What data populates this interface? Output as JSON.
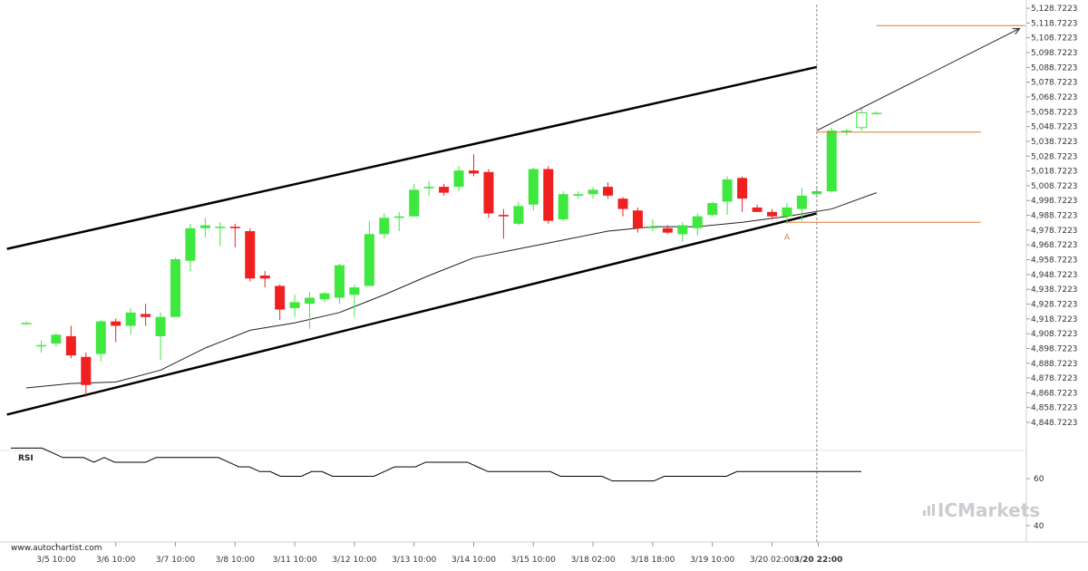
{
  "source_label": "www.autochartist.com",
  "watermark": "ICMarkets",
  "colors": {
    "bull": "#3ee83e",
    "bear": "#f02020",
    "ma": "#222222",
    "channel": "#000000",
    "level": "#e07a30",
    "projection": "#222222",
    "rsi": "#000000",
    "grid_axis": "#d0d0d0"
  },
  "chart_data": [
    {
      "type": "candlestick",
      "title": "",
      "ylim": [
        4842,
        5130
      ],
      "y_ticks": [
        "5,128.7223",
        "5,118.7223",
        "5,108.7223",
        "5,098.7223",
        "5,088.7223",
        "5,078.7223",
        "5,068.7223",
        "5,058.7223",
        "5,048.7223",
        "5,038.7223",
        "5,028.7223",
        "5,018.7223",
        "5,008.7223",
        "4,998.7223",
        "4,988.7223",
        "4,978.7223",
        "4,968.7223",
        "4,958.7223",
        "4,948.7223",
        "4,938.7223",
        "4,928.7223",
        "4,918.7223",
        "4,908.7223",
        "4,898.7223",
        "4,888.7223",
        "4,878.7223",
        "4,868.7223",
        "4,858.7223",
        "4,848.7223"
      ],
      "x_ticks": [
        {
          "index": 2,
          "label": "3/5 10:00"
        },
        {
          "index": 6,
          "label": "3/6 10:00"
        },
        {
          "index": 10,
          "label": "3/7 10:00"
        },
        {
          "index": 14,
          "label": "3/8 10:00"
        },
        {
          "index": 18,
          "label": "3/11 10:00"
        },
        {
          "index": 22,
          "label": "3/12 10:00"
        },
        {
          "index": 26,
          "label": "3/13 10:00"
        },
        {
          "index": 30,
          "label": "3/14 10:00"
        },
        {
          "index": 34,
          "label": "3/15 10:00"
        },
        {
          "index": 38,
          "label": "3/18 02:00"
        },
        {
          "index": 42,
          "label": "3/18 18:00"
        },
        {
          "index": 46,
          "label": "3/19 10:00"
        },
        {
          "index": 50,
          "label": "3/20 02:00"
        },
        {
          "index": 53.1,
          "label": "3/20 22:00",
          "bold": true
        }
      ],
      "candles": [
        {
          "o": 4916,
          "h": 4917,
          "l": 4915,
          "c": 4916
        },
        {
          "o": 4901,
          "h": 4904,
          "l": 4896,
          "c": 4901
        },
        {
          "o": 4902,
          "h": 4909,
          "l": 4900,
          "c": 4908
        },
        {
          "o": 4907,
          "h": 4914,
          "l": 4892,
          "c": 4894
        },
        {
          "o": 4893,
          "h": 4896,
          "l": 4866,
          "c": 4874
        },
        {
          "o": 4895,
          "h": 4918,
          "l": 4890,
          "c": 4917
        },
        {
          "o": 4917,
          "h": 4919,
          "l": 4903,
          "c": 4914
        },
        {
          "o": 4914,
          "h": 4926,
          "l": 4908,
          "c": 4923
        },
        {
          "o": 4922,
          "h": 4929,
          "l": 4914,
          "c": 4920
        },
        {
          "o": 4907,
          "h": 4923,
          "l": 4891,
          "c": 4920
        },
        {
          "o": 4920,
          "h": 4960,
          "l": 4920,
          "c": 4959
        },
        {
          "o": 4958,
          "h": 4983,
          "l": 4951,
          "c": 4980
        },
        {
          "o": 4980,
          "h": 4987,
          "l": 4974,
          "c": 4982
        },
        {
          "o": 4981,
          "h": 4984,
          "l": 4968,
          "c": 4981
        },
        {
          "o": 4981,
          "h": 4983,
          "l": 4967,
          "c": 4980
        },
        {
          "o": 4978,
          "h": 4980,
          "l": 4944,
          "c": 4946
        },
        {
          "o": 4948,
          "h": 4951,
          "l": 4940,
          "c": 4946
        },
        {
          "o": 4941,
          "h": 4942,
          "l": 4918,
          "c": 4925
        },
        {
          "o": 4926,
          "h": 4935,
          "l": 4920,
          "c": 4930
        },
        {
          "o": 4929,
          "h": 4937,
          "l": 4912,
          "c": 4933
        },
        {
          "o": 4932,
          "h": 4937,
          "l": 4930,
          "c": 4936
        },
        {
          "o": 4933,
          "h": 4956,
          "l": 4929,
          "c": 4955
        },
        {
          "o": 4935,
          "h": 4942,
          "l": 4920,
          "c": 4940
        },
        {
          "o": 4941,
          "h": 4985,
          "l": 4941,
          "c": 4976
        },
        {
          "o": 4976,
          "h": 4990,
          "l": 4973,
          "c": 4987
        },
        {
          "o": 4987,
          "h": 4991,
          "l": 4978,
          "c": 4988
        },
        {
          "o": 4988,
          "h": 5010,
          "l": 4988,
          "c": 5006
        },
        {
          "o": 5007,
          "h": 5012,
          "l": 5002,
          "c": 5008
        },
        {
          "o": 5008,
          "h": 5010,
          "l": 5002,
          "c": 5004
        },
        {
          "o": 5008,
          "h": 5022,
          "l": 5005,
          "c": 5019
        },
        {
          "o": 5019,
          "h": 5030,
          "l": 5015,
          "c": 5017
        },
        {
          "o": 5018,
          "h": 5020,
          "l": 4987,
          "c": 4990
        },
        {
          "o": 4989,
          "h": 4993,
          "l": 4973,
          "c": 4988
        },
        {
          "o": 4983,
          "h": 4998,
          "l": 4982,
          "c": 4995
        },
        {
          "o": 4996,
          "h": 5021,
          "l": 4992,
          "c": 5020
        },
        {
          "o": 5020,
          "h": 5022,
          "l": 4983,
          "c": 4985
        },
        {
          "o": 4986,
          "h": 5005,
          "l": 4985,
          "c": 5003
        },
        {
          "o": 5002,
          "h": 5005,
          "l": 5000,
          "c": 5003
        },
        {
          "o": 5003,
          "h": 5008,
          "l": 5000,
          "c": 5006
        },
        {
          "o": 5008,
          "h": 5011,
          "l": 5000,
          "c": 5002
        },
        {
          "o": 5000,
          "h": 5001,
          "l": 4988,
          "c": 4993
        },
        {
          "o": 4992,
          "h": 4994,
          "l": 4977,
          "c": 4980
        },
        {
          "o": 4980,
          "h": 4986,
          "l": 4978,
          "c": 4981
        },
        {
          "o": 4980,
          "h": 4982,
          "l": 4976,
          "c": 4977
        },
        {
          "o": 4976,
          "h": 4984,
          "l": 4971,
          "c": 4982
        },
        {
          "o": 4980,
          "h": 4990,
          "l": 4975,
          "c": 4988
        },
        {
          "o": 4989,
          "h": 4998,
          "l": 4988,
          "c": 4997
        },
        {
          "o": 4998,
          "h": 5015,
          "l": 4989,
          "c": 5013
        },
        {
          "o": 5014,
          "h": 5015,
          "l": 4991,
          "c": 5000
        },
        {
          "o": 4994,
          "h": 4996,
          "l": 4991,
          "c": 4991
        },
        {
          "o": 4991,
          "h": 4993,
          "l": 4986,
          "c": 4988
        },
        {
          "o": 4988,
          "h": 4997,
          "l": 4983,
          "c": 4994
        },
        {
          "o": 4993,
          "h": 5007,
          "l": 4985,
          "c": 5002
        },
        {
          "o": 5003,
          "h": 5007,
          "l": 5002,
          "c": 5005
        },
        {
          "o": 5005,
          "h": 5048,
          "l": 5004,
          "c": 5046
        },
        {
          "o": 5046,
          "h": 5047,
          "l": 5043,
          "c": 5046
        },
        {
          "o": 5048,
          "h": 5061,
          "l": 5046,
          "c": 5058
        },
        {
          "o": 5058,
          "h": 5059,
          "l": 5058,
          "c": 5058
        }
      ],
      "hollow_indices": [
        56
      ],
      "moving_average": [
        [
          0,
          4872
        ],
        [
          3,
          4875
        ],
        [
          6,
          4876
        ],
        [
          9,
          4884
        ],
        [
          12,
          4899
        ],
        [
          15,
          4911
        ],
        [
          18,
          4916
        ],
        [
          21,
          4923
        ],
        [
          24,
          4935
        ],
        [
          27,
          4948
        ],
        [
          30,
          4960
        ],
        [
          33,
          4966
        ],
        [
          36,
          4972
        ],
        [
          39,
          4978
        ],
        [
          42,
          4981
        ],
        [
          45,
          4981
        ],
        [
          48,
          4984
        ],
        [
          51,
          4988
        ],
        [
          54,
          4993
        ],
        [
          57,
          5004
        ]
      ],
      "channel_upper": [
        [
          -1.3,
          4966
        ],
        [
          53,
          5089
        ]
      ],
      "channel_lower": [
        [
          -1.3,
          4854
        ],
        [
          53,
          4990
        ]
      ],
      "levels": [
        {
          "value": 5045,
          "from": 53,
          "to": 64
        },
        {
          "value": 4984,
          "from": 51,
          "to": 64
        },
        {
          "value": 5117,
          "from": 57,
          "to": 67
        }
      ],
      "projection": [
        [
          53,
          5046
        ],
        [
          66.6,
          5115
        ]
      ],
      "current_bar_index": 53,
      "point_label": {
        "text": "A",
        "index": 51,
        "value": 4979
      }
    },
    {
      "type": "line",
      "title": "RSI",
      "ylim": [
        33,
        72
      ],
      "y_ticks": [
        "60",
        "40"
      ],
      "series": [
        {
          "values": [
            73,
            73,
            73,
            73,
            71,
            69,
            69,
            69,
            67,
            69,
            67,
            67,
            67,
            67,
            69,
            69,
            69,
            69,
            69,
            69,
            69,
            67,
            65,
            65,
            63,
            63,
            61,
            61,
            61,
            63,
            63,
            61,
            61,
            61,
            61,
            61,
            63,
            65,
            65,
            65,
            67,
            67,
            67,
            67,
            67,
            65,
            63,
            63,
            63,
            63,
            63,
            63,
            63,
            61,
            61,
            61,
            61,
            61,
            59,
            59,
            59,
            59,
            59,
            61,
            61,
            61,
            61,
            61,
            61,
            61,
            63,
            63,
            63,
            63,
            63,
            63,
            63,
            63,
            63,
            63,
            63,
            63,
            63
          ]
        }
      ]
    }
  ]
}
